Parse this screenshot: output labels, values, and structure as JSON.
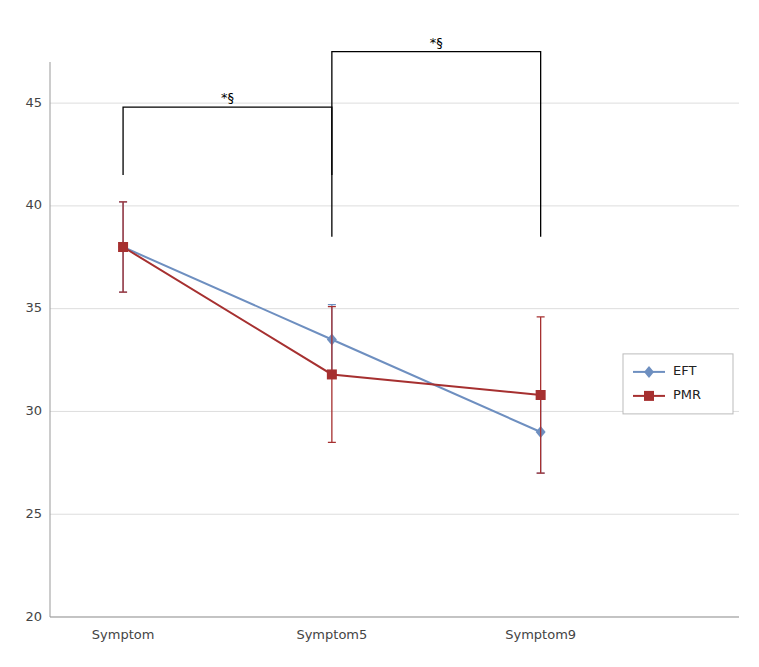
{
  "chart_data": {
    "type": "line",
    "categories": [
      "Symptom",
      "Symptom5",
      "Symptom9"
    ],
    "series": [
      {
        "name": "EFT",
        "color": "#6e8fc0",
        "marker": "diamond",
        "values": [
          38.0,
          33.5,
          29.0
        ],
        "errors": [
          2.2,
          1.7,
          2.0
        ]
      },
      {
        "name": "PMR",
        "color": "#a63030",
        "marker": "square",
        "values": [
          38.0,
          31.8,
          30.8
        ],
        "errors": [
          2.2,
          3.3,
          3.8
        ]
      }
    ],
    "ylim": [
      20,
      47
    ],
    "yticks": [
      20,
      25,
      30,
      35,
      40,
      45
    ],
    "grid": true,
    "legend": "right",
    "annotations": [
      {
        "text": "*§",
        "x": [
          "Symptom",
          "Symptom5"
        ],
        "y_top": 44.8,
        "y_bottom": 41.5
      },
      {
        "text": "*§",
        "x": [
          "Symptom5",
          "Symptom9"
        ],
        "y_top": 47.5,
        "y_bottom": 38.5
      }
    ]
  }
}
